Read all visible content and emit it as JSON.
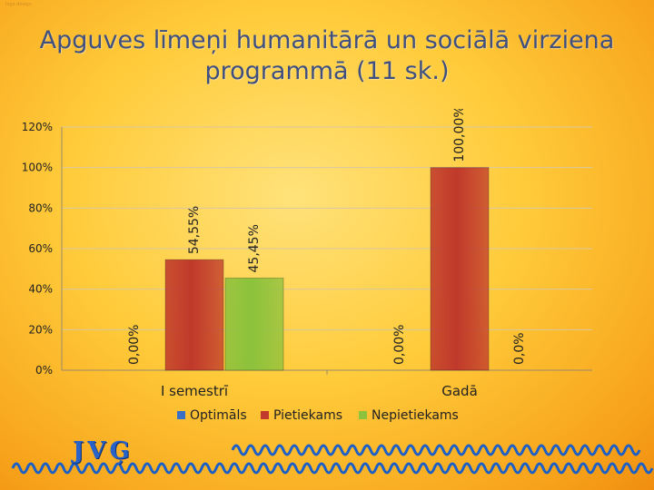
{
  "page": {
    "corner_note": "logo design",
    "title_line1": "Apguves līmeņi humanitārā un sociālā virziena",
    "title_line2": "programmā (11 sk.)",
    "logo_text": "JVĢ"
  },
  "chart_data": {
    "type": "bar",
    "title": "",
    "xlabel": "",
    "ylabel": "",
    "categories": [
      "I semestrī",
      "Gadā"
    ],
    "series": [
      {
        "name": "Optimāls",
        "values": [
          0,
          0
        ],
        "labels": [
          "0,00%",
          "0,00%"
        ],
        "color": "#3a6fc4"
      },
      {
        "name": "Pietiekams",
        "values": [
          54.55,
          100
        ],
        "labels": [
          "54,55%",
          "100,00%"
        ],
        "color": "#c0392b"
      },
      {
        "name": "Nepietiekams",
        "values": [
          45.45,
          0
        ],
        "labels": [
          "45,45%",
          "0,0%"
        ],
        "color": "#8cc23c"
      }
    ],
    "ylim": [
      0,
      120
    ],
    "y_ticks": [
      "0%",
      "20%",
      "40%",
      "60%",
      "80%",
      "100%",
      "120%"
    ],
    "grid": true,
    "legend_position": "bottom"
  },
  "colors": {
    "title": "#3f4f7f",
    "gridline": "#d9c7a0",
    "axis_text": "#222222",
    "wave": "#1a5fc8"
  }
}
